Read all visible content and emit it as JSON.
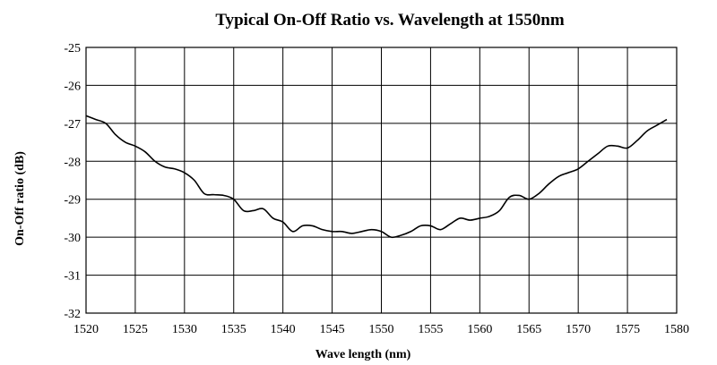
{
  "chart_data": {
    "type": "line",
    "title": "Typical On-Off Ratio vs. Wavelength at 1550nm",
    "xlabel": "Wave length (nm)",
    "ylabel": "On-Off ratio (dB)",
    "xlim": [
      1520,
      1580
    ],
    "ylim": [
      -32,
      -25
    ],
    "x_ticks": [
      1520,
      1525,
      1530,
      1535,
      1540,
      1545,
      1550,
      1555,
      1560,
      1565,
      1570,
      1575,
      1580
    ],
    "y_ticks": [
      -25,
      -26,
      -27,
      -28,
      -29,
      -30,
      -31,
      -32
    ],
    "grid": true,
    "series": [
      {
        "name": "On-Off ratio",
        "x": [
          1520,
          1521,
          1522,
          1523,
          1524,
          1525,
          1526,
          1527,
          1528,
          1529,
          1530,
          1531,
          1532,
          1533,
          1534,
          1535,
          1536,
          1537,
          1538,
          1539,
          1540,
          1541,
          1542,
          1543,
          1544,
          1545,
          1546,
          1547,
          1548,
          1549,
          1550,
          1551,
          1552,
          1553,
          1554,
          1555,
          1556,
          1557,
          1558,
          1559,
          1560,
          1561,
          1562,
          1563,
          1564,
          1565,
          1566,
          1567,
          1568,
          1569,
          1570,
          1571,
          1572,
          1573,
          1574,
          1575,
          1576,
          1577,
          1578,
          1579
        ],
        "y": [
          -26.8,
          -26.9,
          -27.0,
          -27.3,
          -27.5,
          -27.6,
          -27.75,
          -28.0,
          -28.15,
          -28.2,
          -28.3,
          -28.5,
          -28.85,
          -28.88,
          -28.9,
          -29.0,
          -29.3,
          -29.3,
          -29.25,
          -29.5,
          -29.6,
          -29.85,
          -29.7,
          -29.7,
          -29.8,
          -29.85,
          -29.85,
          -29.9,
          -29.85,
          -29.8,
          -29.85,
          -30.0,
          -29.95,
          -29.85,
          -29.7,
          -29.7,
          -29.8,
          -29.65,
          -29.5,
          -29.55,
          -29.5,
          -29.45,
          -29.3,
          -28.95,
          -28.9,
          -29.0,
          -28.85,
          -28.6,
          -28.4,
          -28.3,
          -28.2,
          -28.0,
          -27.8,
          -27.6,
          -27.6,
          -27.65,
          -27.45,
          -27.2,
          -27.05,
          -26.9
        ]
      }
    ]
  }
}
